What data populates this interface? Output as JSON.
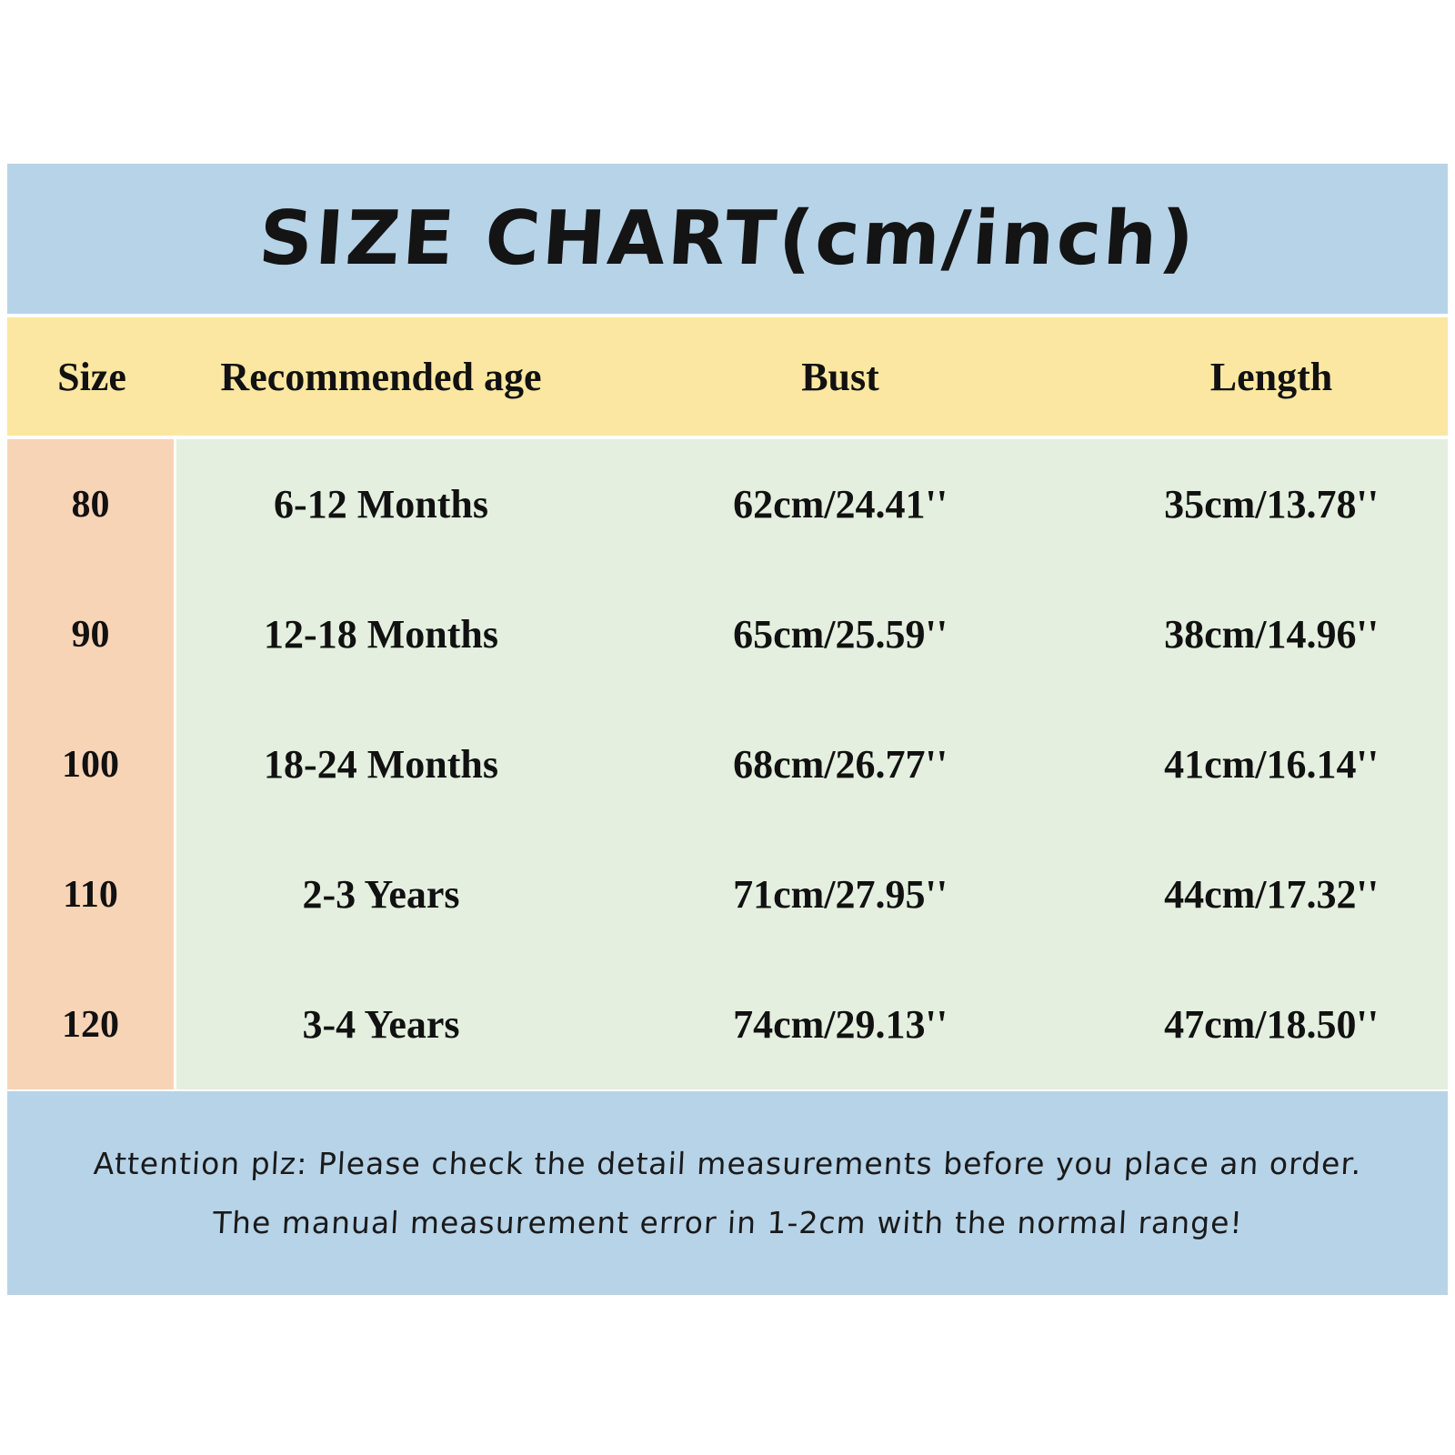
{
  "title": "SIZE CHART(cm/inch)",
  "table": {
    "headers": [
      "Size",
      "Recommended age",
      "Bust",
      "Length"
    ],
    "rows": [
      {
        "size": "80",
        "age": "6-12 Months",
        "bust": "62cm/24.41''",
        "length": "35cm/13.78''"
      },
      {
        "size": "90",
        "age": "12-18 Months",
        "bust": "65cm/25.59''",
        "length": "38cm/14.96''"
      },
      {
        "size": "100",
        "age": "18-24 Months",
        "bust": "68cm/26.77''",
        "length": "41cm/16.14''"
      },
      {
        "size": "110",
        "age": "2-3 Years",
        "bust": "71cm/27.95''",
        "length": "44cm/17.32''"
      },
      {
        "size": "120",
        "age": "3-4 Years",
        "bust": "74cm/29.13''",
        "length": "47cm/18.50''"
      }
    ]
  },
  "footer": {
    "line1": "Attention plz:  Please check the detail measurements before you place an order.",
    "line2": "The manual measurement error in 1-2cm with the normal range!"
  },
  "colors": {
    "banner_blue": "#b7d3e8",
    "header_yellow": "#fbe7a1",
    "size_column_peach": "#f8d4b6",
    "body_green": "#e4efdf",
    "text": "#111111"
  }
}
